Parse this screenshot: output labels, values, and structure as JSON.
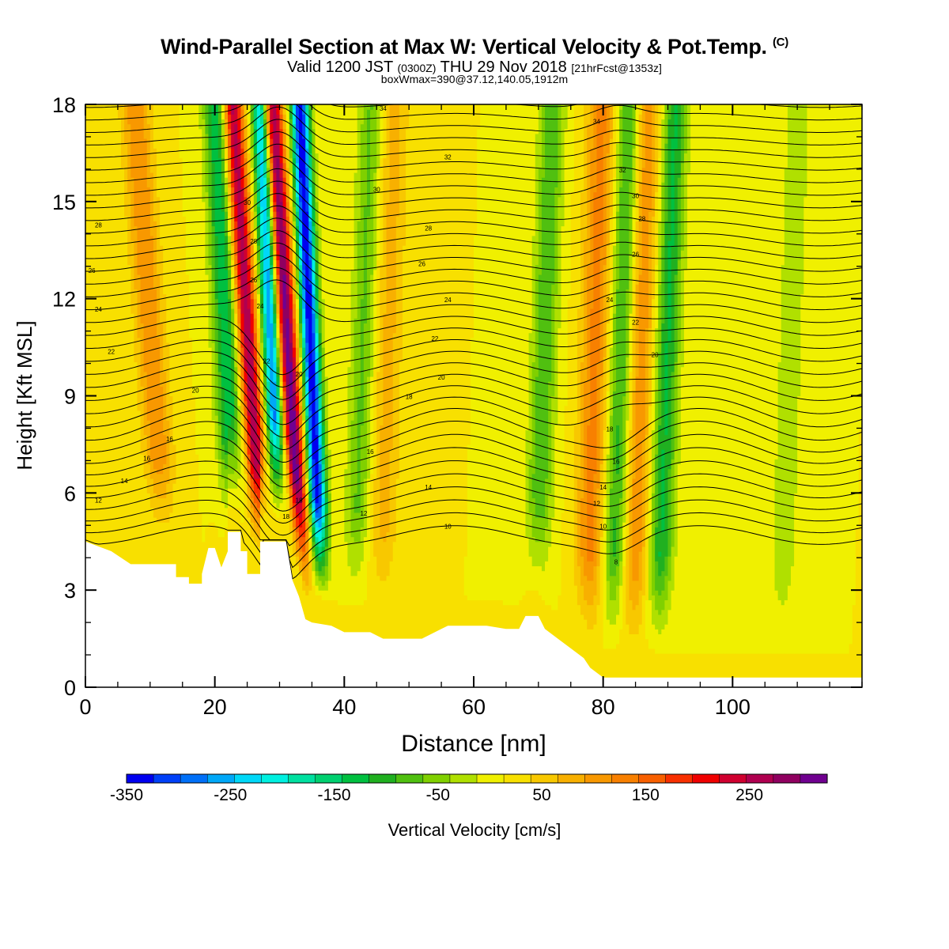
{
  "title": {
    "main": "Wind-Parallel Section at Max W: Vertical Velocity & Pot.Temp.",
    "copyright": "(C)",
    "valid_prefix": "Valid 1200 JST",
    "utc": "(0300Z)",
    "date_text": "THU 29 Nov 2018",
    "forecast": "[21hrFcst@1353z]",
    "box_info": "boxWmax=390@37.12,140.05,1912m"
  },
  "chart_data": {
    "type": "heatmap",
    "xlabel": "Distance [nm]",
    "ylabel": "Height [Kft MSL]",
    "xlim": [
      0,
      120
    ],
    "ylim": [
      0,
      18
    ],
    "x_ticks": [
      0,
      20,
      40,
      60,
      80,
      100
    ],
    "y_ticks": [
      0,
      3,
      6,
      9,
      12,
      15,
      18
    ],
    "colorbar": {
      "label": "Vertical Velocity [cm/s]",
      "tick_labels": [
        "-350",
        "-250",
        "-150",
        "-50",
        "50",
        "150",
        "250"
      ],
      "tick_values": [
        -350,
        -250,
        -150,
        -50,
        50,
        150,
        250
      ],
      "min": -350,
      "max": 325,
      "colors": [
        "#0000f0",
        "#0040f8",
        "#0070f8",
        "#00a8f8",
        "#00d8f8",
        "#00f0e0",
        "#00e0a0",
        "#00d070",
        "#00c040",
        "#20b020",
        "#50c010",
        "#80d000",
        "#b0e000",
        "#f0f000",
        "#f8e000",
        "#f8c800",
        "#f8b000",
        "#f89800",
        "#f88000",
        "#f86000",
        "#f83000",
        "#f00000",
        "#d00030",
        "#b00050",
        "#900060",
        "#700090"
      ]
    },
    "updrafts": [
      {
        "x_nm": 27,
        "peak_cm_s": 250
      },
      {
        "x_nm": 33,
        "peak_cm_s": 300
      },
      {
        "x_nm": 12,
        "peak_cm_s": 100
      },
      {
        "x_nm": 46,
        "peak_cm_s": 60
      },
      {
        "x_nm": 78,
        "peak_cm_s": 110
      },
      {
        "x_nm": 85,
        "peak_cm_s": 100
      }
    ],
    "downdrafts": [
      {
        "x_nm": 23,
        "peak_cm_s": -150
      },
      {
        "x_nm": 30,
        "peak_cm_s": -300
      },
      {
        "x_nm": 36,
        "peak_cm_s": -350
      },
      {
        "x_nm": 42,
        "peak_cm_s": -80
      },
      {
        "x_nm": 70,
        "peak_cm_s": -100
      },
      {
        "x_nm": 82,
        "peak_cm_s": -120
      },
      {
        "x_nm": 89,
        "peak_cm_s": -130
      },
      {
        "x_nm": 108,
        "peak_cm_s": -50
      }
    ],
    "terrain_kft": [
      [
        0,
        4.5
      ],
      [
        4,
        4.2
      ],
      [
        7,
        3.8
      ],
      [
        14,
        3.8
      ],
      [
        14,
        3.4
      ],
      [
        16,
        3.4
      ],
      [
        16,
        3.2
      ],
      [
        18,
        3.2
      ],
      [
        18,
        3.5
      ],
      [
        19,
        4.3
      ],
      [
        20,
        4.3
      ],
      [
        21,
        3.7
      ],
      [
        22,
        4.2
      ],
      [
        22,
        4.8
      ],
      [
        24,
        4.8
      ],
      [
        24,
        4.2
      ],
      [
        25,
        4.2
      ],
      [
        25,
        3.5
      ],
      [
        27,
        3.5
      ],
      [
        27,
        4.5
      ],
      [
        31,
        4.5
      ],
      [
        32,
        3.3
      ],
      [
        33,
        2.8
      ],
      [
        34,
        2.1
      ],
      [
        35,
        2.0
      ],
      [
        38,
        1.9
      ],
      [
        40,
        1.7
      ],
      [
        44,
        1.7
      ],
      [
        46,
        1.5
      ],
      [
        50,
        1.5
      ],
      [
        52,
        1.5
      ],
      [
        53,
        1.6
      ],
      [
        55,
        1.8
      ],
      [
        56,
        1.9
      ],
      [
        62,
        1.9
      ],
      [
        65,
        1.8
      ],
      [
        67,
        1.8
      ],
      [
        68,
        2.2
      ],
      [
        70,
        2.2
      ],
      [
        71,
        1.8
      ],
      [
        73,
        1.5
      ],
      [
        75,
        1.2
      ],
      [
        77,
        0.9
      ],
      [
        78,
        0.6
      ],
      [
        80,
        0.3
      ],
      [
        120,
        0.3
      ]
    ],
    "theta_contour_labels": [
      {
        "x_nm": 2,
        "z_kft": 5.7,
        "text": "12"
      },
      {
        "x_nm": 6,
        "z_kft": 6.3,
        "text": "14"
      },
      {
        "x_nm": 9.5,
        "z_kft": 7.0,
        "text": "16"
      },
      {
        "x_nm": 13,
        "z_kft": 7.6,
        "text": "16"
      },
      {
        "x_nm": 17,
        "z_kft": 9.1,
        "text": "20"
      },
      {
        "x_nm": 4,
        "z_kft": 10.3,
        "text": "22"
      },
      {
        "x_nm": 2,
        "z_kft": 11.6,
        "text": "24"
      },
      {
        "x_nm": 1,
        "z_kft": 12.8,
        "text": "26"
      },
      {
        "x_nm": 2,
        "z_kft": 14.2,
        "text": "28"
      },
      {
        "x_nm": 25,
        "z_kft": 14.9,
        "text": "30"
      },
      {
        "x_nm": 26,
        "z_kft": 13.7,
        "text": "28"
      },
      {
        "x_nm": 26,
        "z_kft": 12.5,
        "text": "26"
      },
      {
        "x_nm": 27,
        "z_kft": 11.7,
        "text": "24"
      },
      {
        "x_nm": 28,
        "z_kft": 10.0,
        "text": "22"
      },
      {
        "x_nm": 33,
        "z_kft": 9.6,
        "text": "20"
      },
      {
        "x_nm": 31,
        "z_kft": 5.2,
        "text": "18"
      },
      {
        "x_nm": 33,
        "z_kft": 5.7,
        "text": "18"
      },
      {
        "x_nm": 46,
        "z_kft": 17.8,
        "text": "34"
      },
      {
        "x_nm": 56,
        "z_kft": 16.3,
        "text": "32"
      },
      {
        "x_nm": 45,
        "z_kft": 15.3,
        "text": "30"
      },
      {
        "x_nm": 53,
        "z_kft": 14.1,
        "text": "28"
      },
      {
        "x_nm": 52,
        "z_kft": 13.0,
        "text": "26"
      },
      {
        "x_nm": 56,
        "z_kft": 11.9,
        "text": "24"
      },
      {
        "x_nm": 54,
        "z_kft": 10.7,
        "text": "22"
      },
      {
        "x_nm": 55,
        "z_kft": 9.5,
        "text": "20"
      },
      {
        "x_nm": 50,
        "z_kft": 8.9,
        "text": "18"
      },
      {
        "x_nm": 44,
        "z_kft": 7.2,
        "text": "16"
      },
      {
        "x_nm": 53,
        "z_kft": 6.1,
        "text": "14"
      },
      {
        "x_nm": 43,
        "z_kft": 5.3,
        "text": "12"
      },
      {
        "x_nm": 56,
        "z_kft": 4.9,
        "text": "10"
      },
      {
        "x_nm": 79,
        "z_kft": 17.4,
        "text": "34"
      },
      {
        "x_nm": 83,
        "z_kft": 15.9,
        "text": "32"
      },
      {
        "x_nm": 85,
        "z_kft": 15.1,
        "text": "30"
      },
      {
        "x_nm": 86,
        "z_kft": 14.4,
        "text": "28"
      },
      {
        "x_nm": 85,
        "z_kft": 13.3,
        "text": "26"
      },
      {
        "x_nm": 81,
        "z_kft": 11.9,
        "text": "24"
      },
      {
        "x_nm": 85,
        "z_kft": 11.2,
        "text": "22"
      },
      {
        "x_nm": 88,
        "z_kft": 10.2,
        "text": "20"
      },
      {
        "x_nm": 81,
        "z_kft": 7.9,
        "text": "18"
      },
      {
        "x_nm": 82,
        "z_kft": 6.9,
        "text": "16"
      },
      {
        "x_nm": 80,
        "z_kft": 6.1,
        "text": "14"
      },
      {
        "x_nm": 79,
        "z_kft": 5.6,
        "text": "12"
      },
      {
        "x_nm": 80,
        "z_kft": 4.9,
        "text": "10"
      },
      {
        "x_nm": 82,
        "z_kft": 3.8,
        "text": "8"
      }
    ]
  }
}
